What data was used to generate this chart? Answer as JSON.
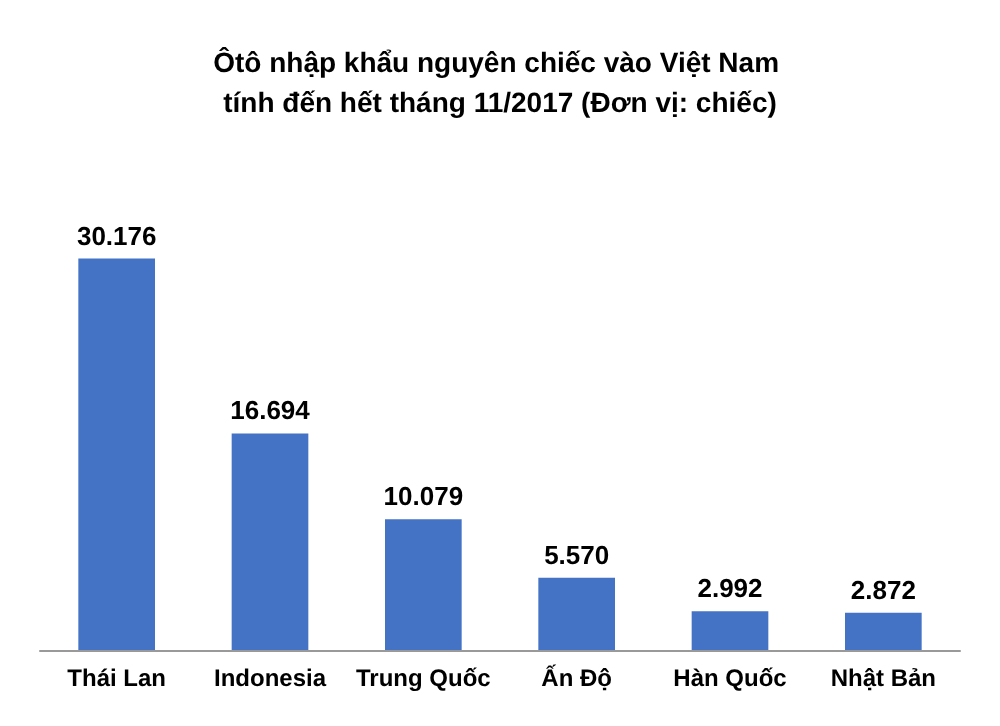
{
  "chart_data": {
    "type": "bar",
    "title": "Ôtô nhập khẩu nguyên chiếc vào Việt Nam tính đến hết tháng 11/2017 (Đơn vị: chiếc)",
    "categories": [
      "Thái Lan",
      "Indonesia",
      "Trung Quốc",
      "Ấn Độ",
      "Hàn Quốc",
      "Nhật Bản"
    ],
    "values": [
      30176,
      16694,
      10079,
      5570,
      2992,
      2872
    ],
    "value_labels": [
      "30.176",
      "16.694",
      "10.079",
      "5.570",
      "2.992",
      "2.872"
    ],
    "color": "#4472c4"
  }
}
